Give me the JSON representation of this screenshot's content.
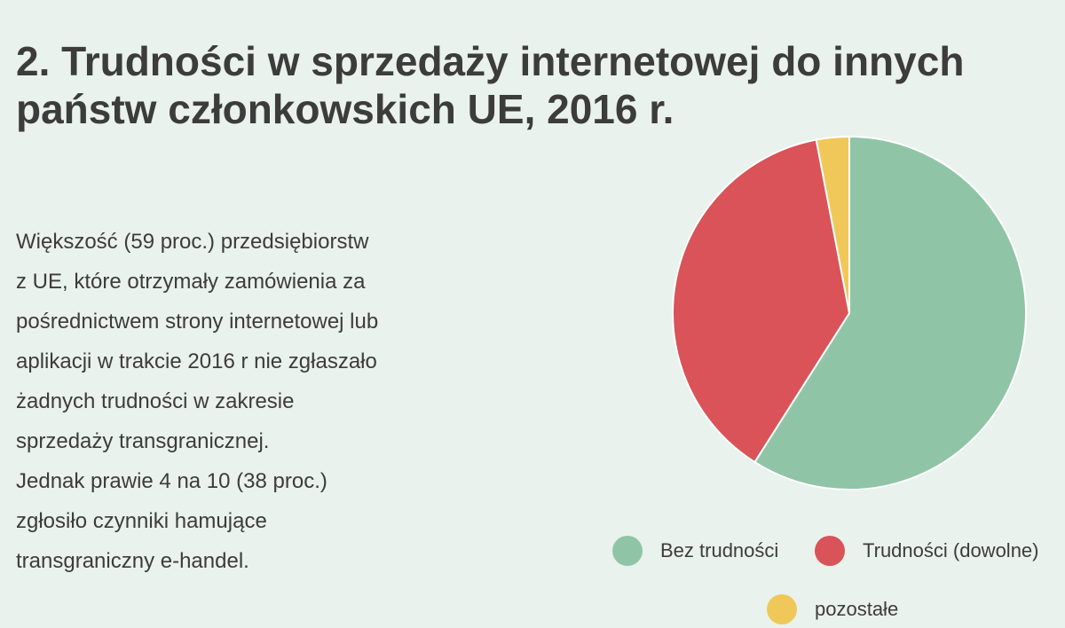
{
  "title_lines": [
    "2. Trudności w sprzedaży internetowej do innych",
    "państw członkowskich UE, 2016 r."
  ],
  "description_lines": [
    "Większość (59 proc.) przedsiębiorstw",
    "z UE, które otrzymały zamówienia za",
    "pośrednictwem strony internetowej lub",
    "aplikacji w trakcie 2016 r nie zgłaszało",
    "żadnych trudności w zakresie",
    "sprzedaży transgranicznej.",
    "Jednak prawie 4 na 10 (38 proc.)",
    "zgłosiło czynniki hamujące",
    "transgraniczny e-handel."
  ],
  "chart_data": {
    "type": "pie",
    "title": "",
    "slices": [
      {
        "label": "Bez trudności",
        "value": 59,
        "color": "#8fc5a6"
      },
      {
        "label": "Trudności (dowolne)",
        "value": 38,
        "color": "#d95358"
      },
      {
        "label": "pozostałe",
        "value": 3,
        "color": "#f0c85a"
      }
    ],
    "legend_position": "bottom"
  }
}
